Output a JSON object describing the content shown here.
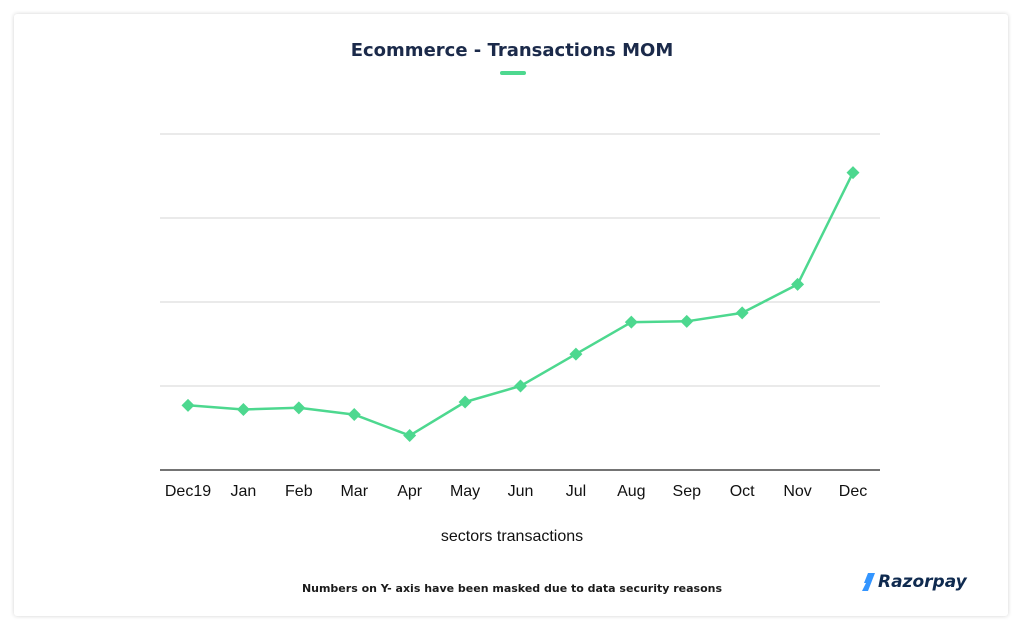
{
  "title": "Ecommerce - Transactions MOM",
  "footnote": "Numbers on Y- axis have been masked due to data security reasons",
  "brand": "Razorpay",
  "colors": {
    "series": "#4dd88f",
    "title": "#1b2a4a",
    "grid": "#d6d6d6",
    "axis": "#222222",
    "brand_mark": "#3395ff"
  },
  "chart_data": {
    "type": "line",
    "title": "Ecommerce - Transactions MOM",
    "xlabel": "sectors transactions",
    "ylabel": "",
    "y_tick_labels_masked": true,
    "ylim": [
      0,
      4
    ],
    "grid": true,
    "marker": "diamond",
    "categories": [
      "Dec19",
      "Jan",
      "Feb",
      "Mar",
      "Apr",
      "May",
      "Jun",
      "Jul",
      "Aug",
      "Sep",
      "Oct",
      "Nov",
      "Dec"
    ],
    "series": [
      {
        "values": [
          0.77,
          0.72,
          0.74,
          0.66,
          0.41,
          0.81,
          1.0,
          1.38,
          1.76,
          1.77,
          1.87,
          2.21,
          3.54
        ]
      }
    ]
  }
}
